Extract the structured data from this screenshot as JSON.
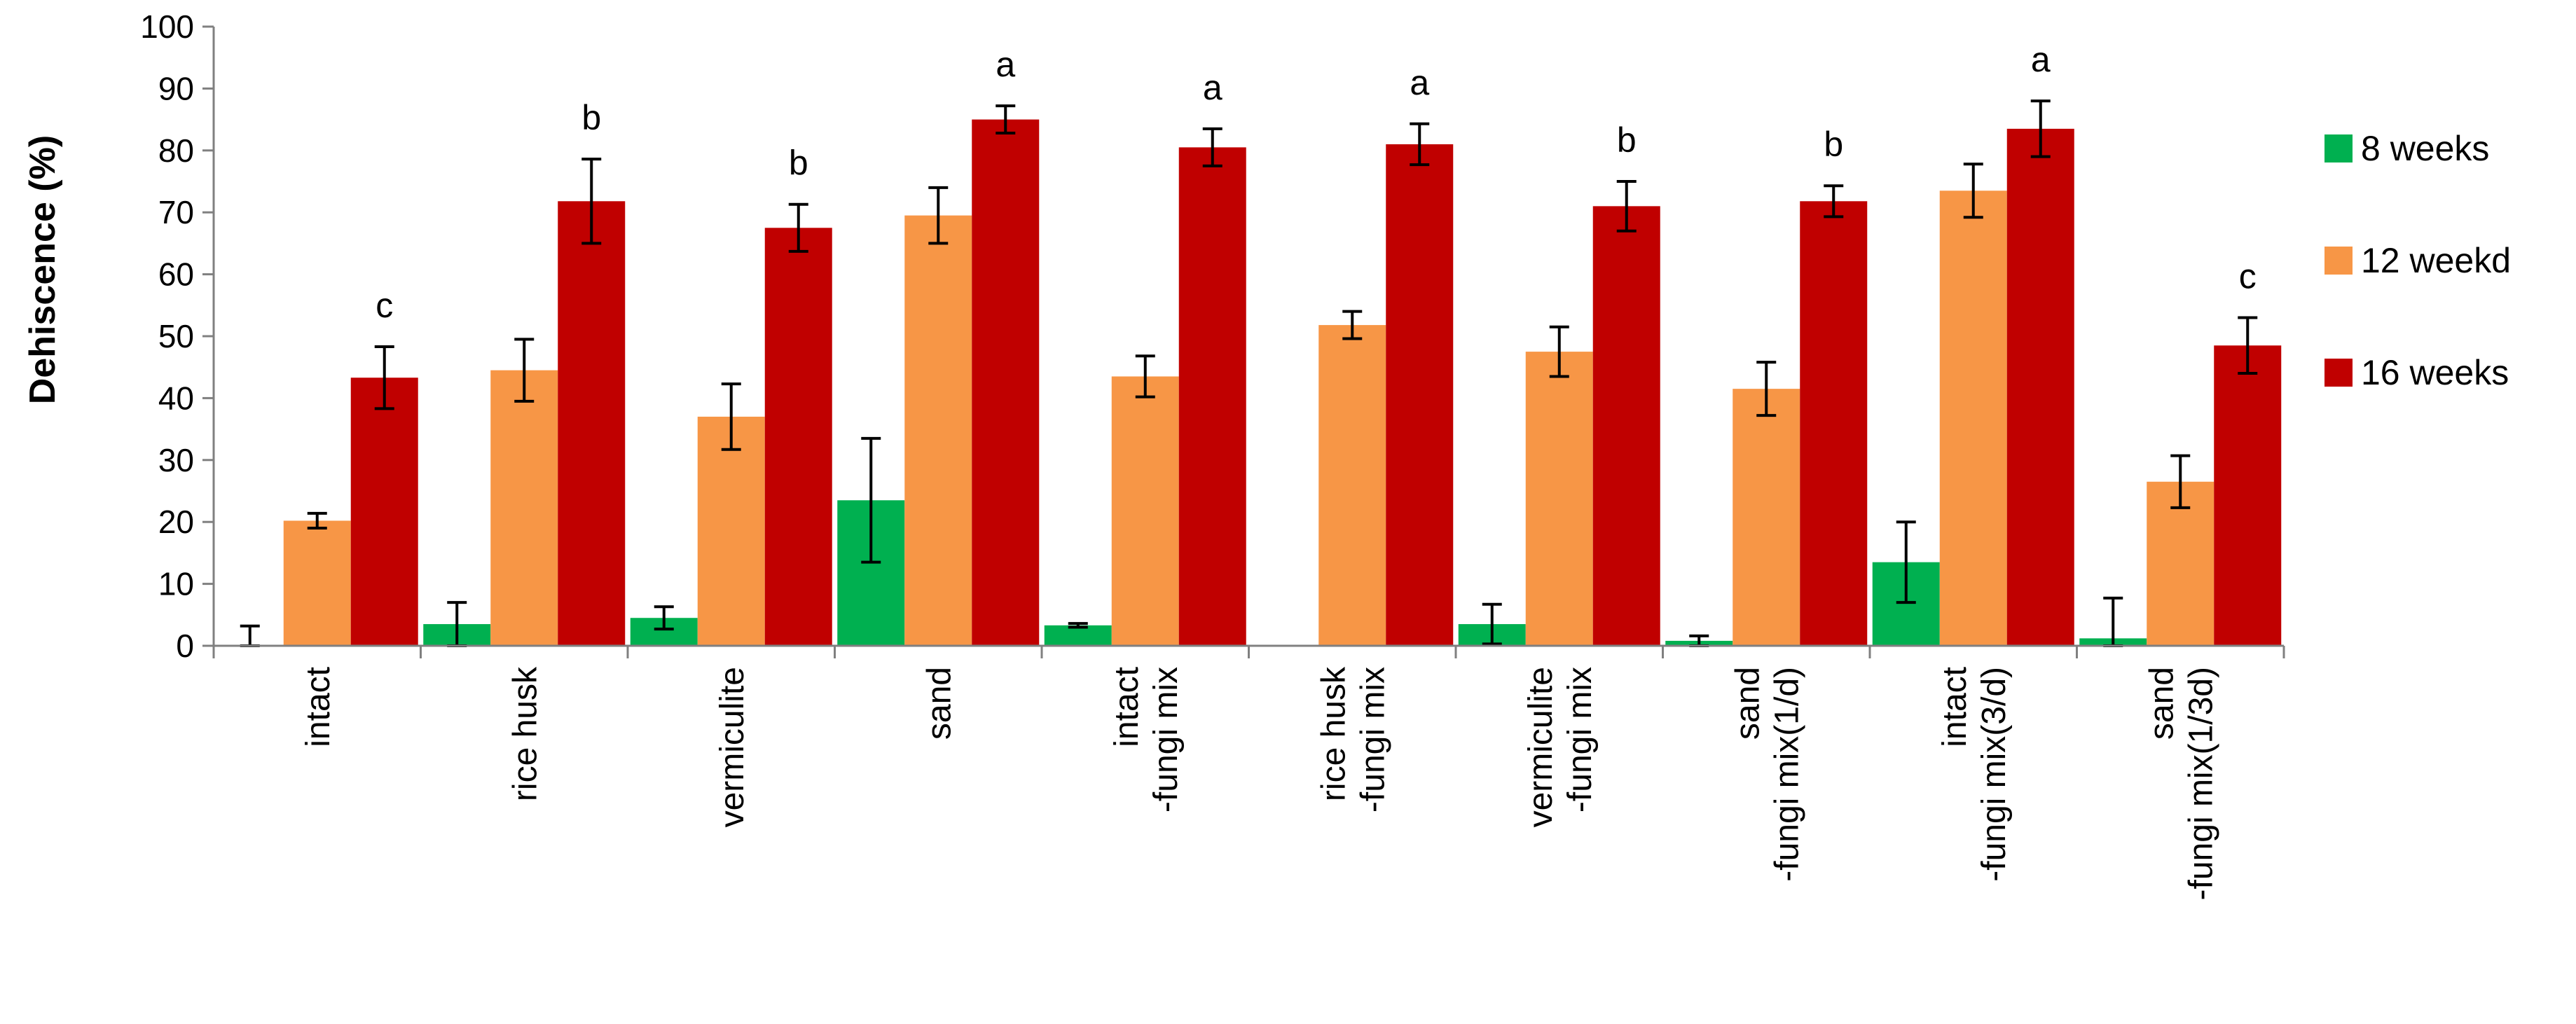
{
  "chart_data": {
    "type": "bar",
    "title": "",
    "xlabel": "",
    "ylabel": "Dehiscence (%)",
    "ylim": [
      0,
      100
    ],
    "yticks": [
      0,
      10,
      20,
      30,
      40,
      50,
      60,
      70,
      80,
      90,
      100
    ],
    "legend_position": "right",
    "categories": [
      [
        "intact"
      ],
      [
        "rice husk"
      ],
      [
        "vermiculite"
      ],
      [
        "sand"
      ],
      [
        "intact",
        "-fungi mix"
      ],
      [
        "rice husk",
        "-fungi mix"
      ],
      [
        "vermiculite",
        "-fungi mix"
      ],
      [
        "sand",
        "-fungi mix(1/d)"
      ],
      [
        "intact",
        "-fungi mix(3/d)"
      ],
      [
        "sand",
        "-fungi mix(1/3d)"
      ]
    ],
    "series": [
      {
        "name": "8 weeks",
        "color": "#00b050",
        "values": [
          0,
          3.5,
          4.5,
          23.5,
          3.3,
          0,
          3.5,
          0.8,
          13.5,
          1.2
        ],
        "errors": [
          3.2,
          3.5,
          1.8,
          10,
          0.3,
          0,
          3.2,
          0.8,
          6.5,
          6.5
        ]
      },
      {
        "name": "12 weekd",
        "color": "#f79646",
        "values": [
          20.2,
          44.5,
          37,
          69.5,
          43.5,
          51.8,
          47.5,
          41.5,
          73.5,
          26.5
        ],
        "errors": [
          1.2,
          5,
          5.3,
          4.5,
          3.3,
          2.2,
          4,
          4.3,
          4.3,
          4.2
        ]
      },
      {
        "name": "16 weeks",
        "color": "#c00000",
        "values": [
          43.3,
          71.8,
          67.5,
          85,
          80.5,
          81,
          71,
          71.8,
          83.5,
          48.5
        ],
        "errors": [
          5,
          6.8,
          3.8,
          2.2,
          3,
          3.3,
          4,
          2.5,
          4.5,
          4.5
        ]
      }
    ],
    "significance_letters": [
      "c",
      "b",
      "b",
      "a",
      "a",
      "a",
      "b",
      "b",
      "a",
      "c"
    ]
  }
}
